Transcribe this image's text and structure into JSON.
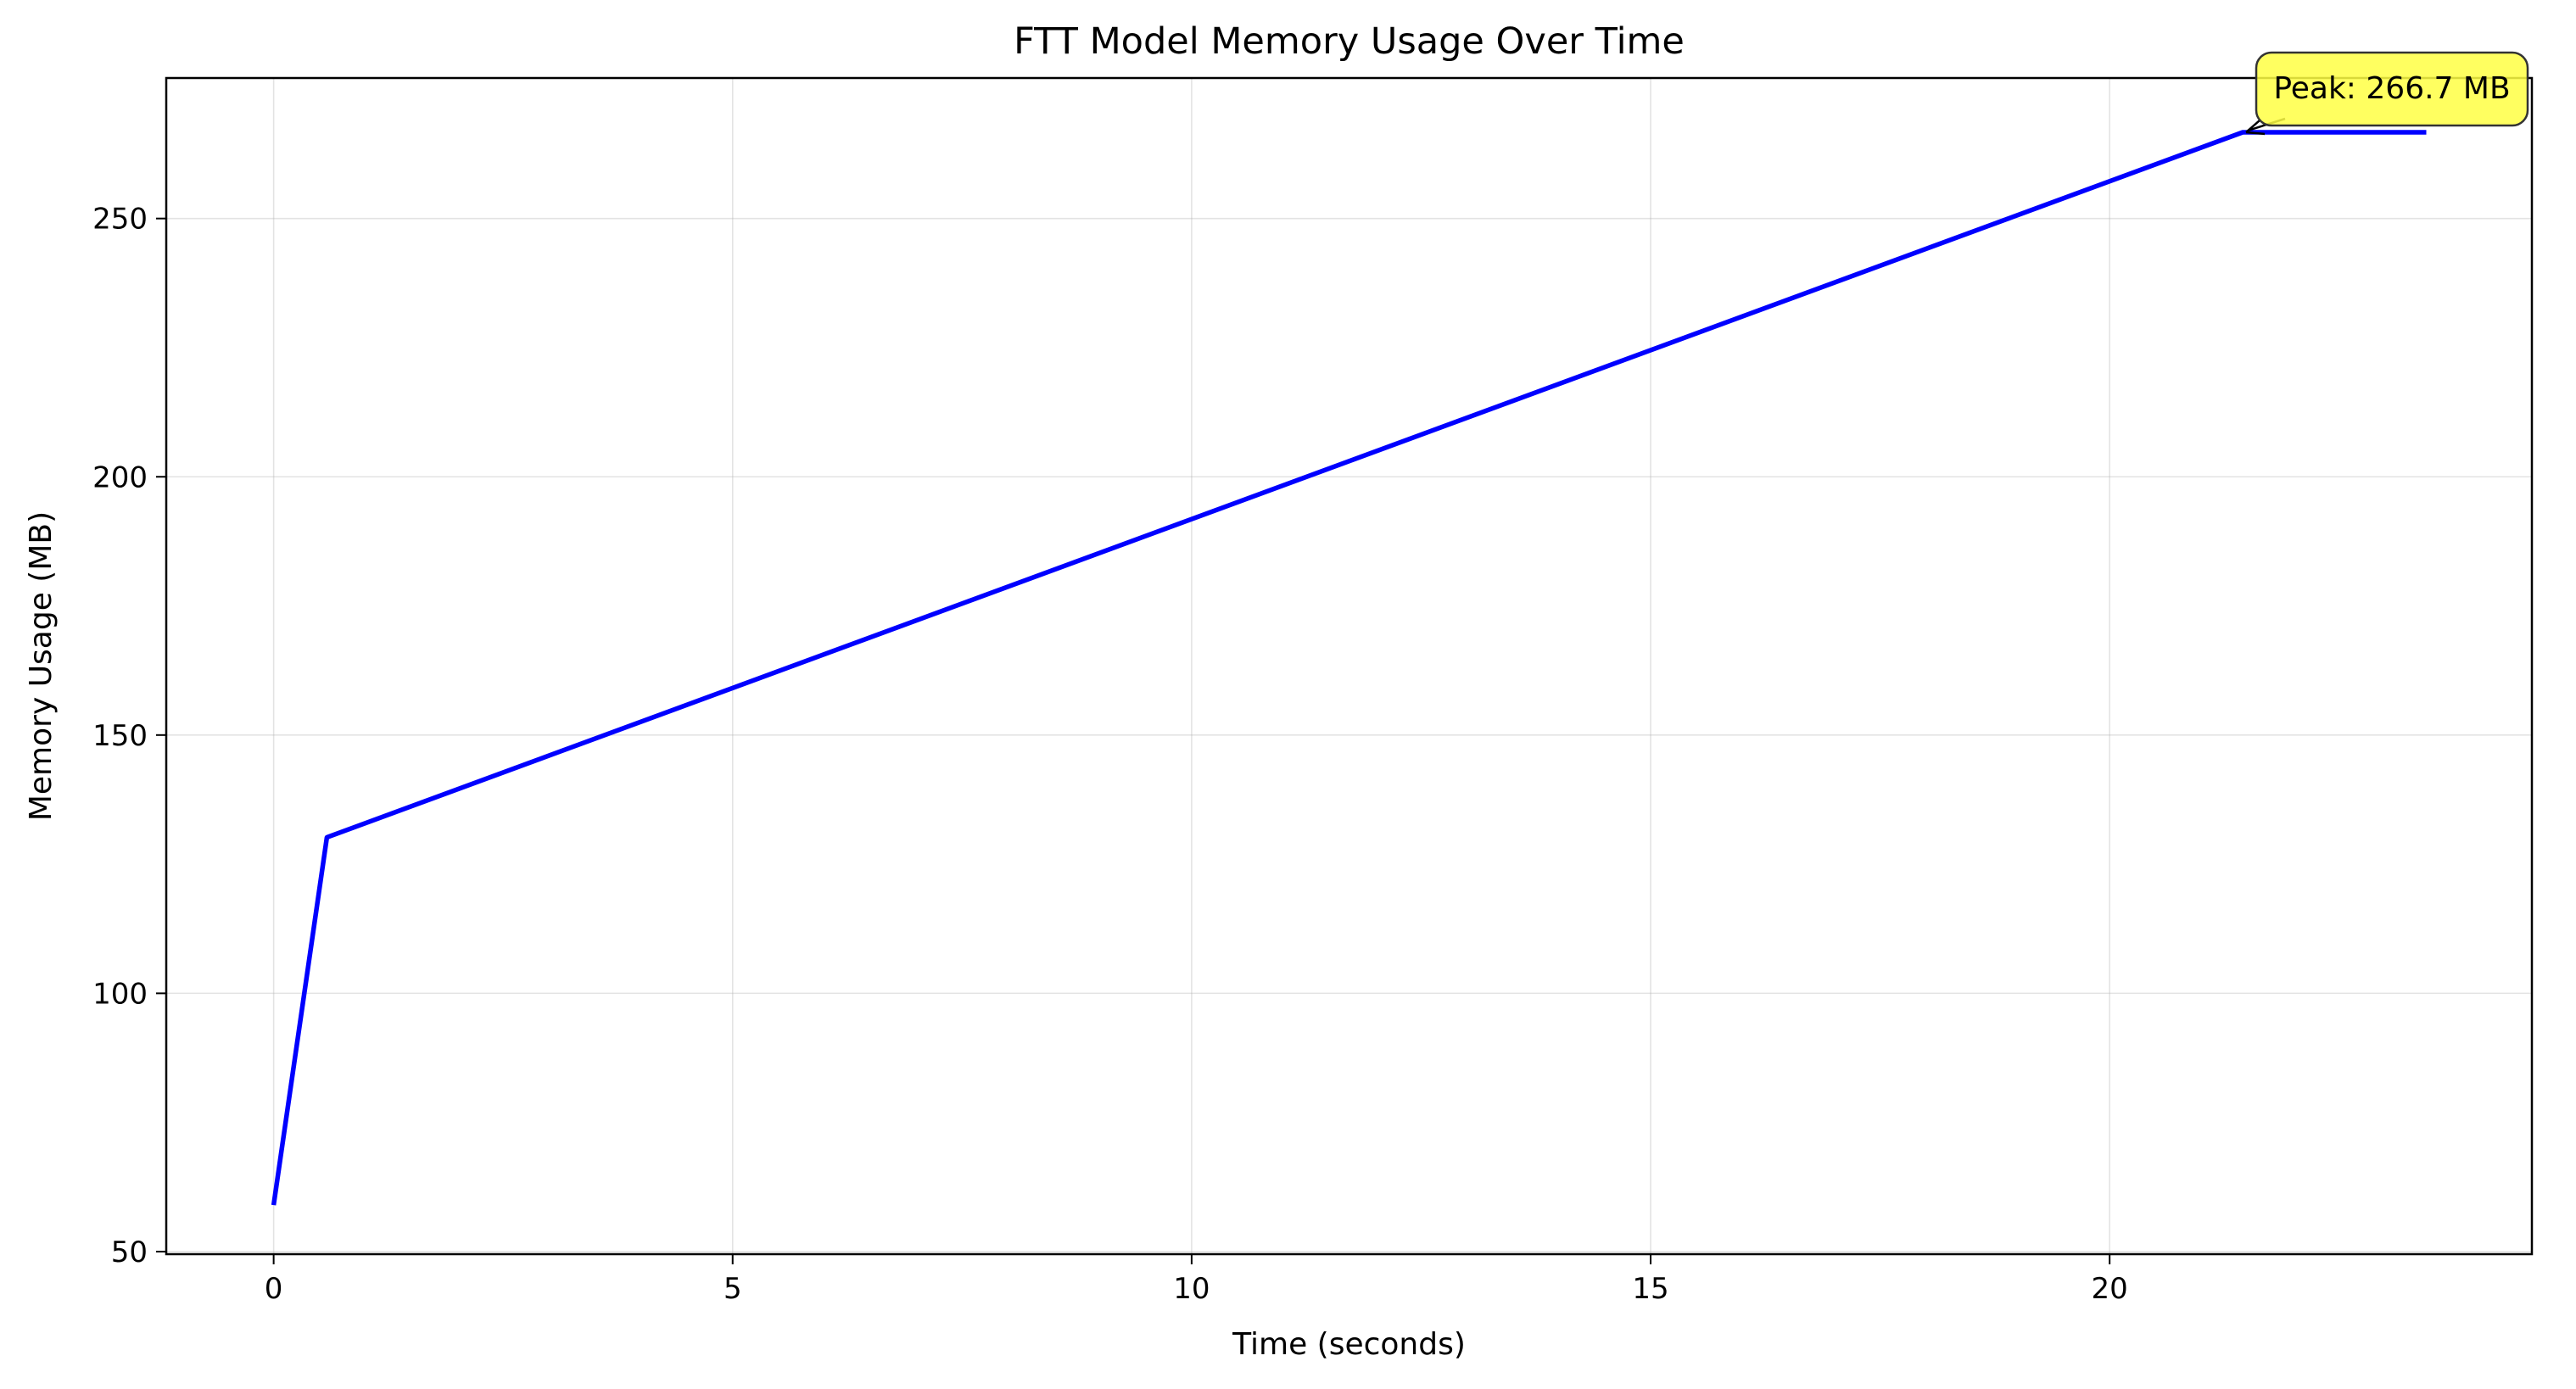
{
  "chart_data": {
    "type": "line",
    "title": "FTT Model Memory Usage Over Time",
    "xlabel": "Time (seconds)",
    "ylabel": "Memory Usage (MB)",
    "xlim": [
      -1.17,
      24.6
    ],
    "ylim": [
      49.5,
      277.2
    ],
    "xticks": [
      0,
      5,
      10,
      15,
      20
    ],
    "yticks": [
      50,
      100,
      150,
      200,
      250
    ],
    "grid": true,
    "legend": "none",
    "series": [
      {
        "color": "#0000ff",
        "x": [
          0,
          0.58,
          21.45,
          23.45
        ],
        "y": [
          59,
          130.2,
          266.7,
          266.7
        ]
      }
    ],
    "annotation": {
      "text": "Peak: 266.7 MB",
      "x": 21.45,
      "y": 266.7,
      "fill_color": "#ffff44",
      "edge_color": "#333333"
    }
  }
}
